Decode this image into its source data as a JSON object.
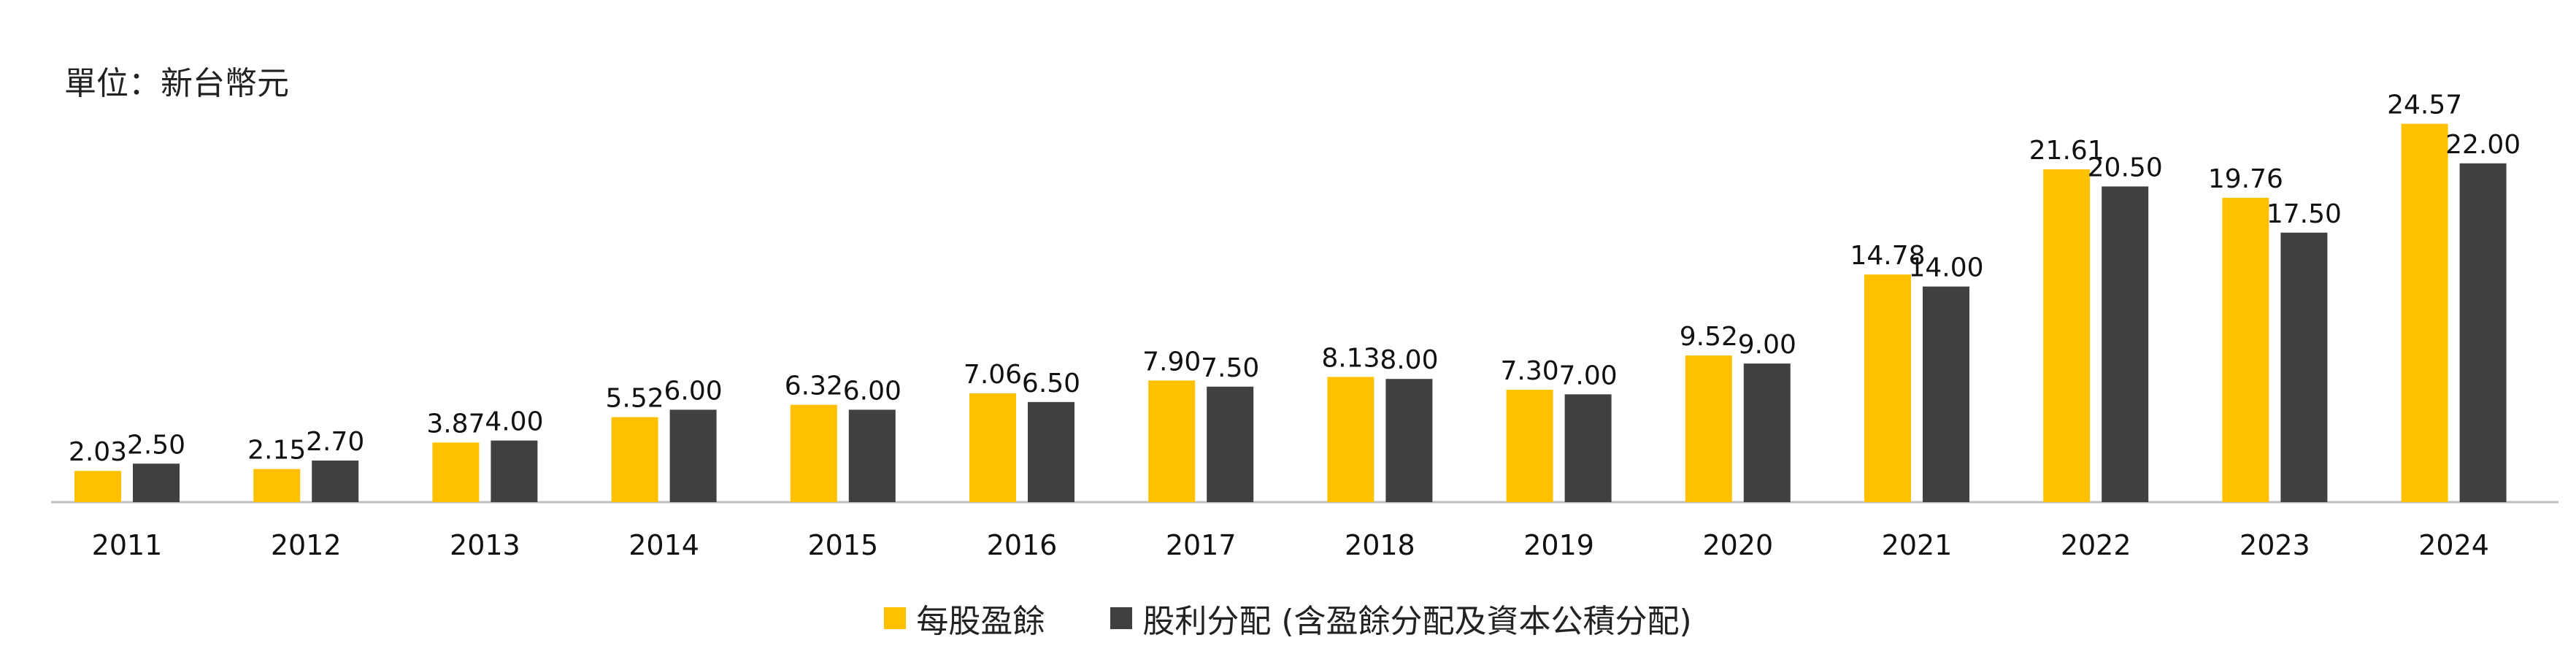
{
  "unit_label": "單位：新台幣元",
  "colors": {
    "eps": "#FFC000",
    "dividend": "#404040",
    "axis": "#BFBFBF"
  },
  "chart_data": {
    "type": "bar",
    "title": "",
    "xlabel": "",
    "ylabel": "",
    "ylim": [
      0,
      28
    ],
    "categories": [
      "2011",
      "2012",
      "2013",
      "2014",
      "2015",
      "2016",
      "2017",
      "2018",
      "2019",
      "2020",
      "2021",
      "2022",
      "2023",
      "2024"
    ],
    "series": [
      {
        "name": "每股盈餘",
        "values": [
          2.03,
          2.15,
          3.87,
          5.52,
          6.32,
          7.06,
          7.9,
          8.13,
          7.3,
          9.52,
          14.78,
          21.61,
          19.76,
          24.57
        ],
        "labels": [
          "2.03",
          "2.15",
          "3.87",
          "5.52",
          "6.32",
          "7.06",
          "7.90",
          "8.13",
          "7.30",
          "9.52",
          "14.78",
          "21.61",
          "19.76",
          "24.57"
        ]
      },
      {
        "name": "股利分配 (含盈餘分配及資本公積分配)",
        "values": [
          2.5,
          2.7,
          4.0,
          6.0,
          6.0,
          6.5,
          7.5,
          8.0,
          7.0,
          9.0,
          14.0,
          20.5,
          17.5,
          22.0
        ],
        "labels": [
          "2.50",
          "2.70",
          "4.00",
          "6.00",
          "6.00",
          "6.50",
          "7.50",
          "8.00",
          "7.00",
          "9.00",
          "14.00",
          "20.50",
          "17.50",
          "22.00"
        ]
      }
    ],
    "legend": "bottom"
  }
}
